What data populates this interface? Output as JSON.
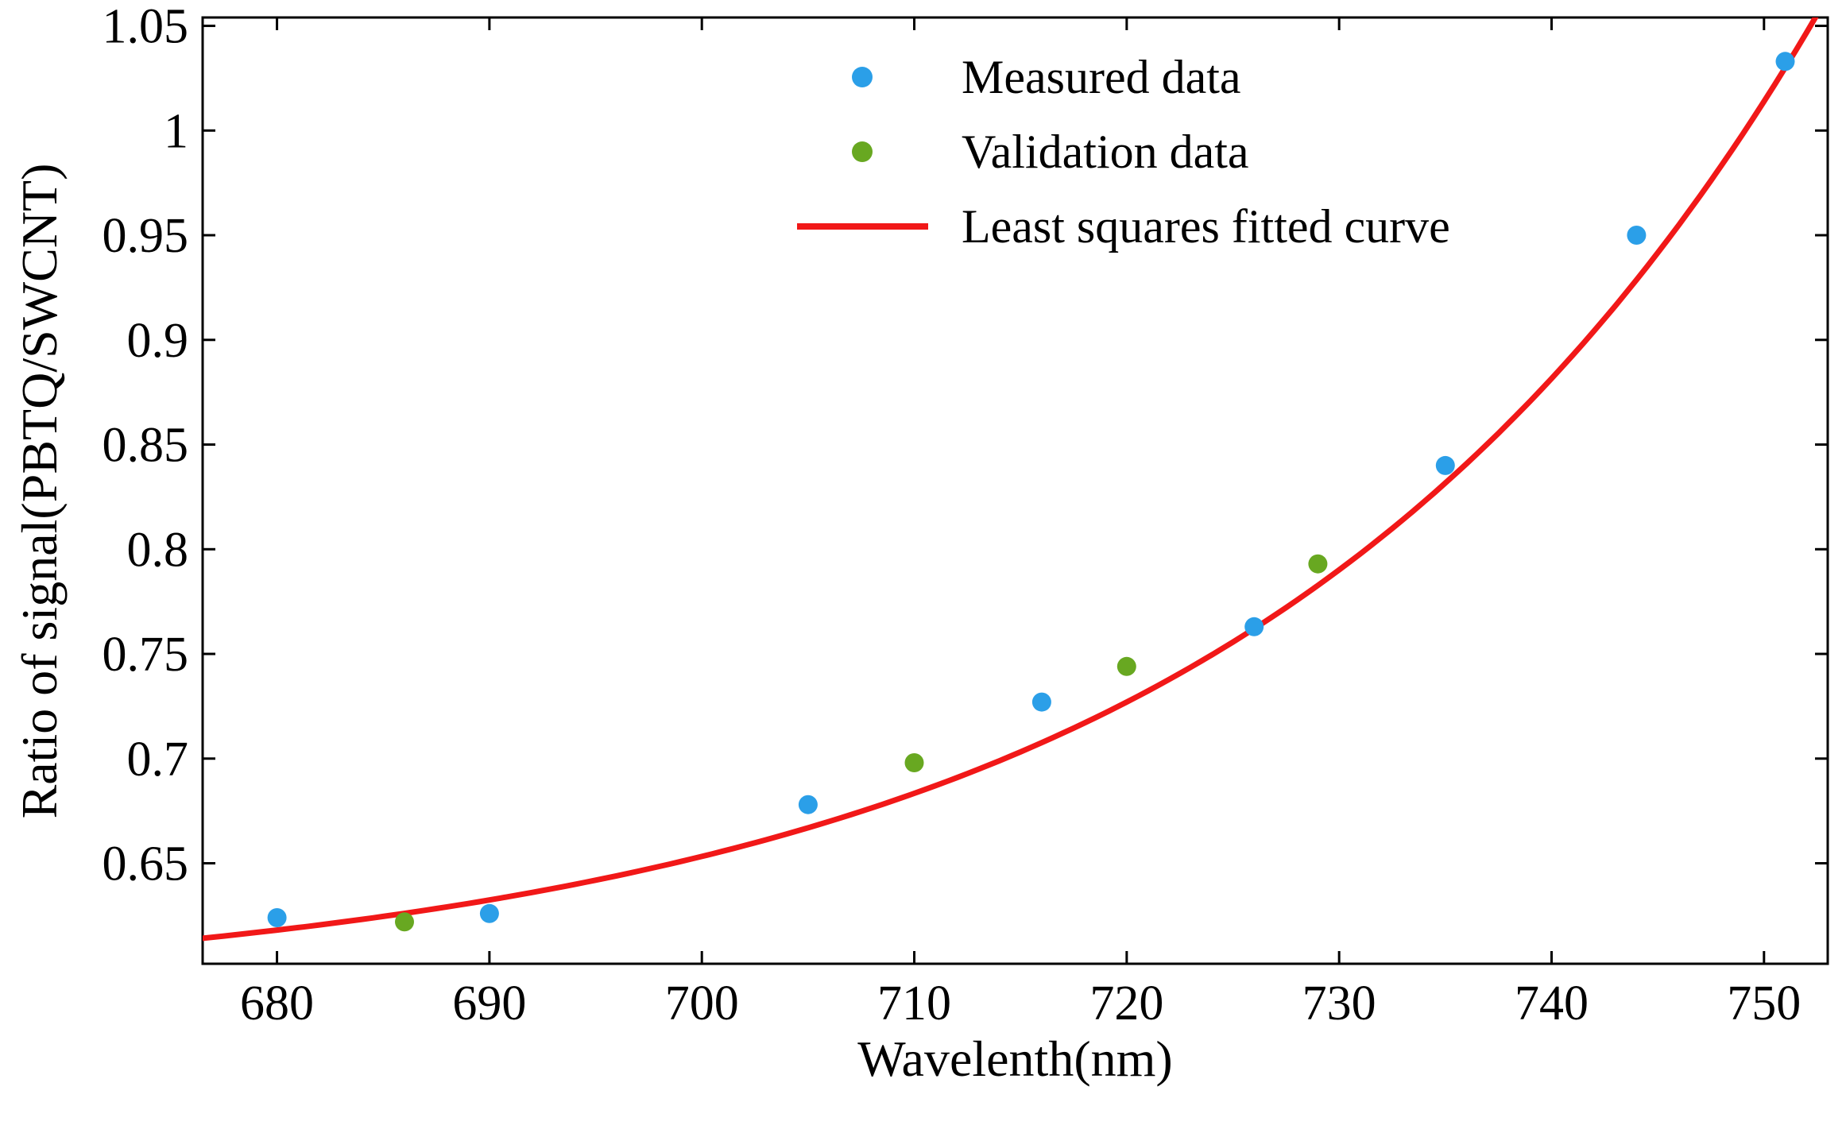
{
  "chart_data": {
    "type": "scatter",
    "title": "",
    "xlabel": "Wavelenth(nm)",
    "ylabel": "Ratio of signal(PBTQ/SWCNT)",
    "xlim": [
      676.5,
      753.0
    ],
    "ylim": [
      0.602,
      1.054
    ],
    "xticks": [
      680,
      690,
      700,
      710,
      720,
      730,
      740,
      750
    ],
    "xtick_labels": [
      "680",
      "690",
      "700",
      "710",
      "720",
      "730",
      "740",
      "750"
    ],
    "yticks": [
      0.65,
      0.7,
      0.75,
      0.8,
      0.85,
      0.9,
      0.95,
      1,
      1.05
    ],
    "ytick_labels": [
      "0.65",
      "0.7",
      "0.75",
      "0.8",
      "0.85",
      "0.9",
      "0.95",
      "1",
      "1.05"
    ],
    "grid": false,
    "legend_position": "top-center",
    "background_color": "#ffffff",
    "axis_color": "#000000",
    "series": [
      {
        "name": "Measured data",
        "type": "scatter",
        "color": "#2B9FE8",
        "points": [
          [
            680,
            0.624
          ],
          [
            690,
            0.626
          ],
          [
            705,
            0.678
          ],
          [
            716,
            0.727
          ],
          [
            726,
            0.763
          ],
          [
            735,
            0.84
          ],
          [
            744,
            0.95
          ],
          [
            751,
            1.033
          ]
        ]
      },
      {
        "name": "Validation data",
        "type": "scatter",
        "color": "#68A821",
        "points": [
          [
            686,
            0.622
          ],
          [
            710,
            0.698
          ],
          [
            720,
            0.744
          ],
          [
            729,
            0.793
          ]
        ]
      },
      {
        "name": "Least squares fitted curve",
        "type": "line",
        "color": "#F11818",
        "x_range": [
          676.5,
          753.0
        ],
        "fit": {
          "model": "exponential",
          "c": 0.586,
          "A": 0.0321,
          "b": 0.037,
          "x0": 680
        }
      }
    ]
  }
}
